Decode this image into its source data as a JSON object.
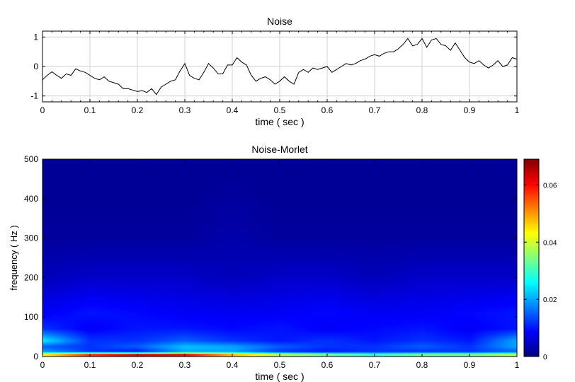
{
  "chart_data": [
    {
      "type": "line",
      "title": "Noise",
      "xlabel": "time ( sec )",
      "ylabel": "",
      "xlim": [
        0,
        1
      ],
      "ylim": [
        -1.2,
        1.2
      ],
      "grid": true,
      "xticks": [
        "0",
        "0.1",
        "0.2",
        "0.3",
        "0.4",
        "0.5",
        "0.6",
        "0.7",
        "0.8",
        "0.9",
        "1"
      ],
      "yticks": [
        "-1",
        "0",
        "1"
      ],
      "series": [
        {
          "name": "Noise",
          "color": "#000000",
          "x": [
            0,
            0.01,
            0.02,
            0.03,
            0.04,
            0.05,
            0.06,
            0.07,
            0.08,
            0.09,
            0.1,
            0.11,
            0.12,
            0.13,
            0.14,
            0.15,
            0.16,
            0.17,
            0.18,
            0.19,
            0.2,
            0.21,
            0.22,
            0.23,
            0.24,
            0.25,
            0.26,
            0.27,
            0.28,
            0.29,
            0.3,
            0.31,
            0.32,
            0.33,
            0.34,
            0.35,
            0.36,
            0.37,
            0.38,
            0.39,
            0.4,
            0.41,
            0.42,
            0.43,
            0.44,
            0.45,
            0.46,
            0.47,
            0.48,
            0.49,
            0.5,
            0.51,
            0.52,
            0.53,
            0.54,
            0.55,
            0.56,
            0.57,
            0.58,
            0.59,
            0.6,
            0.61,
            0.62,
            0.63,
            0.64,
            0.65,
            0.66,
            0.67,
            0.68,
            0.69,
            0.7,
            0.71,
            0.72,
            0.73,
            0.74,
            0.75,
            0.76,
            0.77,
            0.78,
            0.79,
            0.8,
            0.81,
            0.82,
            0.83,
            0.84,
            0.85,
            0.86,
            0.87,
            0.88,
            0.89,
            0.9,
            0.91,
            0.92,
            0.93,
            0.94,
            0.95,
            0.96,
            0.97,
            0.98,
            0.99,
            1.0
          ],
          "y": [
            -0.45,
            -0.3,
            -0.18,
            -0.3,
            -0.4,
            -0.25,
            -0.3,
            -0.08,
            -0.15,
            -0.2,
            -0.3,
            -0.4,
            -0.45,
            -0.35,
            -0.5,
            -0.55,
            -0.6,
            -0.75,
            -0.75,
            -0.8,
            -0.85,
            -0.82,
            -0.88,
            -0.75,
            -0.95,
            -0.7,
            -0.6,
            -0.5,
            -0.45,
            -0.15,
            0.1,
            -0.3,
            -0.4,
            -0.45,
            -0.2,
            0.1,
            -0.05,
            -0.25,
            -0.25,
            0.05,
            0.05,
            0.3,
            0.15,
            0.05,
            -0.3,
            -0.5,
            -0.4,
            -0.35,
            -0.45,
            -0.6,
            -0.5,
            -0.35,
            -0.5,
            -0.6,
            -0.2,
            -0.1,
            -0.2,
            -0.05,
            -0.1,
            -0.05,
            0.0,
            -0.2,
            -0.1,
            0.0,
            0.1,
            0.05,
            0.1,
            0.2,
            0.25,
            0.35,
            0.4,
            0.35,
            0.45,
            0.5,
            0.5,
            0.6,
            0.75,
            0.95,
            0.7,
            0.75,
            0.95,
            0.65,
            0.9,
            0.95,
            0.75,
            0.7,
            0.55,
            0.8,
            0.55,
            0.3,
            0.15,
            0.1,
            0.2,
            0.05,
            -0.05,
            0.05,
            0.2,
            0.0,
            0.05,
            0.3,
            0.25
          ]
        }
      ]
    },
    {
      "type": "heatmap",
      "title": "Noise-Morlet",
      "xlabel": "time ( sec )",
      "ylabel": "frequency ( Hz )",
      "xlim": [
        0,
        1
      ],
      "ylim": [
        0,
        500
      ],
      "xticks": [
        "0",
        "0.1",
        "0.2",
        "0.3",
        "0.4",
        "0.5",
        "0.6",
        "0.7",
        "0.8",
        "0.9",
        "1"
      ],
      "yticks": [
        "0",
        "100",
        "200",
        "300",
        "400",
        "500"
      ],
      "colormap": "jet",
      "clim": [
        0,
        0.069
      ],
      "colorbar_ticks": [
        "0",
        "0.02",
        "0.04",
        "0.06"
      ],
      "times": [
        0,
        0.1,
        0.2,
        0.3,
        0.4,
        0.5,
        0.6,
        0.7,
        0.8,
        0.9,
        1.0
      ],
      "frequencies": [
        0,
        5,
        12,
        25,
        40,
        70,
        110,
        200,
        300,
        400,
        500
      ],
      "values": [
        [
          0.04,
          0.055,
          0.06,
          0.058,
          0.045,
          0.035,
          0.03,
          0.028,
          0.03,
          0.03,
          0.035
        ],
        [
          0.045,
          0.06,
          0.066,
          0.064,
          0.05,
          0.04,
          0.035,
          0.03,
          0.035,
          0.035,
          0.04
        ],
        [
          0.02,
          0.012,
          0.01,
          0.02,
          0.02,
          0.012,
          0.01,
          0.012,
          0.012,
          0.012,
          0.015
        ],
        [
          0.015,
          0.012,
          0.015,
          0.022,
          0.02,
          0.015,
          0.012,
          0.012,
          0.015,
          0.012,
          0.02
        ],
        [
          0.025,
          0.012,
          0.012,
          0.015,
          0.012,
          0.01,
          0.012,
          0.01,
          0.012,
          0.01,
          0.02
        ],
        [
          0.012,
          0.008,
          0.01,
          0.01,
          0.009,
          0.01,
          0.008,
          0.009,
          0.01,
          0.008,
          0.01
        ],
        [
          0.008,
          0.01,
          0.009,
          0.008,
          0.008,
          0.008,
          0.009,
          0.008,
          0.008,
          0.009,
          0.01
        ],
        [
          0.004,
          0.005,
          0.005,
          0.005,
          0.004,
          0.005,
          0.005,
          0.004,
          0.005,
          0.005,
          0.005
        ],
        [
          0.002,
          0.002,
          0.002,
          0.002,
          0.003,
          0.002,
          0.002,
          0.002,
          0.002,
          0.002,
          0.002
        ],
        [
          0.0015,
          0.0015,
          0.0015,
          0.0015,
          0.002,
          0.0015,
          0.0015,
          0.0015,
          0.0015,
          0.0015,
          0.0015
        ],
        [
          0.0015,
          0.0015,
          0.0015,
          0.0015,
          0.0015,
          0.0015,
          0.0015,
          0.0015,
          0.0015,
          0.0015,
          0.0015
        ]
      ]
    }
  ]
}
